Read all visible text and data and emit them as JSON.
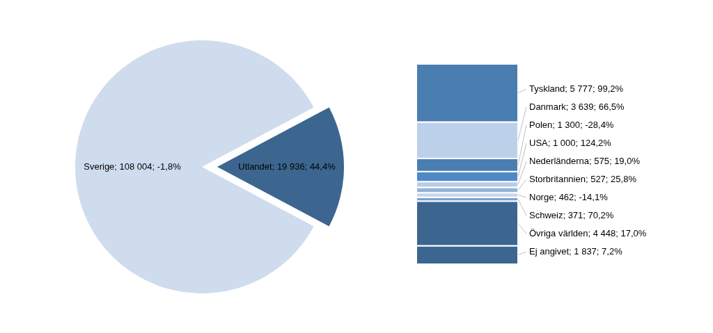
{
  "chart_data": [
    {
      "type": "pie",
      "categories": [
        "Sverige",
        "Utlandet"
      ],
      "values": [
        108004,
        19936
      ],
      "colors": [
        "#cfdcee",
        "#3c6690"
      ],
      "value_labels": [
        "108 004; -1,8%",
        "19 936; 44,4%"
      ]
    },
    {
      "type": "bar",
      "stacked": true,
      "categories": [
        null
      ],
      "series": [
        {
          "color": "#3c6690",
          "values": [
            1837
          ],
          "value_labels": [
            "Ej angivet; 1 837; 7,2%"
          ]
        },
        {
          "color": "#3c6690",
          "values": [
            4448
          ],
          "value_labels": [
            "Övriga världen; 4 448; 17,0%"
          ]
        },
        {
          "color": "#7ba3d1",
          "values": [
            371
          ],
          "value_labels": [
            "Schweiz; 371; 70,2%"
          ]
        },
        {
          "color": "#c6d6ec",
          "values": [
            462
          ],
          "value_labels": [
            "Norge; 462; -14,1%"
          ]
        },
        {
          "color": "#95b3d7",
          "values": [
            527
          ],
          "value_labels": [
            "Storbritannien; 527; 25,8%"
          ]
        },
        {
          "color": "#b9cde5",
          "values": [
            575
          ],
          "value_labels": [
            "Nederländerna; 575; 19,0%"
          ]
        },
        {
          "color": "#4f88c6",
          "values": [
            1000
          ],
          "value_labels": [
            "USA; 1 000; 124,2%"
          ]
        },
        {
          "color": "#4a7eb0",
          "values": [
            1300
          ],
          "value_labels": [
            "Polen; 1 300; -28,4%"
          ]
        },
        {
          "color": "#bcd0ea",
          "values": [
            3639
          ],
          "value_labels": [
            "Danmark; 3 639; 66,5%"
          ]
        },
        {
          "color": "#4a7eb0",
          "values": [
            5777
          ],
          "value_labels": [
            "Tyskland; 5 777; 99,2%"
          ]
        }
      ]
    }
  ]
}
